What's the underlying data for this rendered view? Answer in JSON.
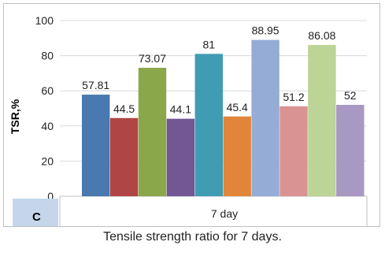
{
  "chart_data": {
    "type": "bar",
    "categories": [
      "7 day"
    ],
    "series": [
      {
        "value": 57.81,
        "label": "57.81",
        "color": "#4a78b0"
      },
      {
        "value": 44.5,
        "label": "44.5",
        "color": "#b04545"
      },
      {
        "value": 73.07,
        "label": "73.07",
        "color": "#8aa84a"
      },
      {
        "value": 44.1,
        "label": "44.1",
        "color": "#735694"
      },
      {
        "value": 81,
        "label": "81",
        "color": "#3f9cb3"
      },
      {
        "value": 45.4,
        "label": "45.4",
        "color": "#e0853a"
      },
      {
        "value": 88.95,
        "label": "88.95",
        "color": "#95acd6"
      },
      {
        "value": 51.2,
        "label": "51.2",
        "color": "#d99393"
      },
      {
        "value": 86.08,
        "label": "86.08",
        "color": "#bcd495"
      },
      {
        "value": 52,
        "label": "52",
        "color": "#a898c2"
      }
    ],
    "ylabel": "TSR,%",
    "xlabel": "",
    "ylim": [
      0,
      100
    ],
    "yticks": [
      0,
      20,
      40,
      60,
      80,
      100
    ],
    "xtick_label": "7 day",
    "panel_label": "C",
    "grid": true
  },
  "caption": "Tensile strength ratio for 7 days."
}
